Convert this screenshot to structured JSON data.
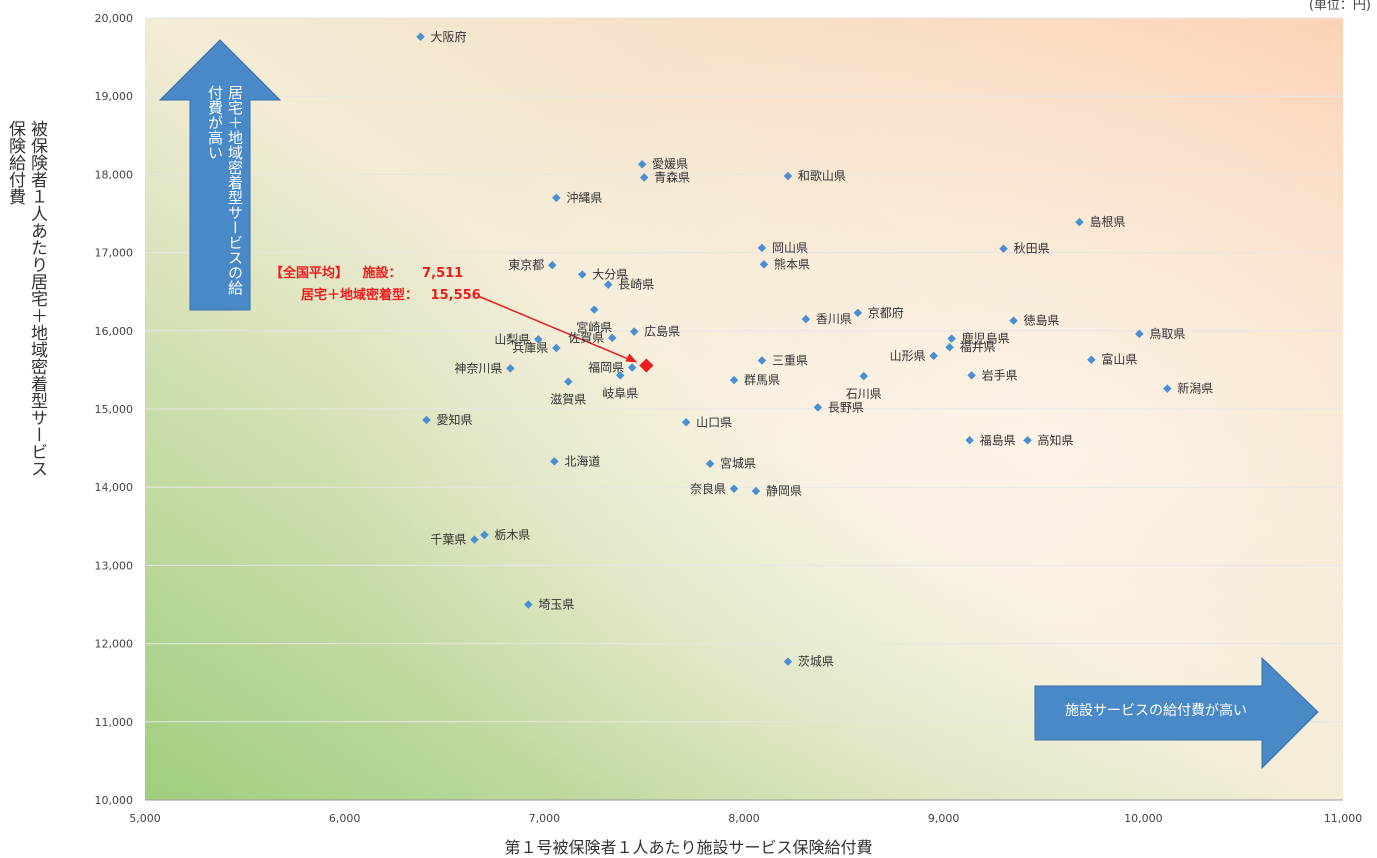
{
  "unit_label": "(単位：円)",
  "arrows": {
    "up": "居宅＋地域密着型サービスの給付費が高い",
    "right": "施設サービスの給付費が高い"
  },
  "national_average": {
    "title": "【全国平均】",
    "facility_label": "施設：",
    "facility_value": "7,511",
    "home_label": "居宅＋地域密着型：",
    "home_value": "15,556",
    "x": 7511,
    "y": 15556
  },
  "chart_data": {
    "type": "scatter",
    "xlabel": "第１号被保険者１人あたり施設サービス保険給付費",
    "ylabel": "被保険者１人あたり居宅＋地域密着型サービス保険給付費",
    "xlim": [
      5000,
      11000
    ],
    "ylim": [
      10000,
      20000
    ],
    "xticks": [
      "5,000",
      "6,000",
      "7,000",
      "8,000",
      "9,000",
      "10,000",
      "11,000"
    ],
    "yticks": [
      "10,000",
      "11,000",
      "12,000",
      "13,000",
      "14,000",
      "15,000",
      "16,000",
      "17,000",
      "18,000",
      "19,000",
      "20,000"
    ],
    "grid": "horizontal",
    "points": [
      {
        "label": "大阪府",
        "x": 6380,
        "y": 19760
      },
      {
        "label": "愛媛県",
        "x": 7490,
        "y": 18130
      },
      {
        "label": "青森県",
        "x": 7500,
        "y": 17960
      },
      {
        "label": "和歌山県",
        "x": 8220,
        "y": 17980
      },
      {
        "label": "沖縄県",
        "x": 7060,
        "y": 17700
      },
      {
        "label": "島根県",
        "x": 9680,
        "y": 17390
      },
      {
        "label": "岡山県",
        "x": 8090,
        "y": 17060
      },
      {
        "label": "秋田県",
        "x": 9300,
        "y": 17050
      },
      {
        "label": "熊本県",
        "x": 8100,
        "y": 16850
      },
      {
        "label": "東京都",
        "x": 7040,
        "y": 16840
      },
      {
        "label": "大分県",
        "x": 7190,
        "y": 16720
      },
      {
        "label": "長崎県",
        "x": 7320,
        "y": 16590
      },
      {
        "label": "宮崎県",
        "x": 7250,
        "y": 16270
      },
      {
        "label": "香川県",
        "x": 8310,
        "y": 16150
      },
      {
        "label": "京都府",
        "x": 8570,
        "y": 16230
      },
      {
        "label": "徳島県",
        "x": 9350,
        "y": 16130
      },
      {
        "label": "佐賀県",
        "x": 7340,
        "y": 15910
      },
      {
        "label": "広島県",
        "x": 7450,
        "y": 15990
      },
      {
        "label": "山梨県",
        "x": 6970,
        "y": 15890
      },
      {
        "label": "鹿児島県",
        "x": 9040,
        "y": 15900
      },
      {
        "label": "鳥取県",
        "x": 9980,
        "y": 15960
      },
      {
        "label": "福井県",
        "x": 9030,
        "y": 15790
      },
      {
        "label": "兵庫県",
        "x": 7060,
        "y": 15780
      },
      {
        "label": "三重県",
        "x": 8090,
        "y": 15620
      },
      {
        "label": "山形県",
        "x": 8950,
        "y": 15680
      },
      {
        "label": "富山県",
        "x": 9740,
        "y": 15630
      },
      {
        "label": "福岡県",
        "x": 7440,
        "y": 15530
      },
      {
        "label": "神奈川県",
        "x": 6830,
        "y": 15520
      },
      {
        "label": "岐阜県",
        "x": 7380,
        "y": 15430
      },
      {
        "label": "岩手県",
        "x": 9140,
        "y": 15430
      },
      {
        "label": "石川県",
        "x": 8600,
        "y": 15420
      },
      {
        "label": "群馬県",
        "x": 7950,
        "y": 15370
      },
      {
        "label": "滋賀県",
        "x": 7120,
        "y": 15350
      },
      {
        "label": "新潟県",
        "x": 10120,
        "y": 15260
      },
      {
        "label": "長野県",
        "x": 8370,
        "y": 15020
      },
      {
        "label": "愛知県",
        "x": 6410,
        "y": 14860
      },
      {
        "label": "山口県",
        "x": 7710,
        "y": 14830
      },
      {
        "label": "福島県",
        "x": 9130,
        "y": 14600
      },
      {
        "label": "高知県",
        "x": 9420,
        "y": 14600
      },
      {
        "label": "北海道",
        "x": 7050,
        "y": 14330
      },
      {
        "label": "宮城県",
        "x": 7830,
        "y": 14300
      },
      {
        "label": "奈良県",
        "x": 7950,
        "y": 13980
      },
      {
        "label": "静岡県",
        "x": 8060,
        "y": 13950
      },
      {
        "label": "栃木県",
        "x": 6700,
        "y": 13390
      },
      {
        "label": "千葉県",
        "x": 6650,
        "y": 13330
      },
      {
        "label": "埼玉県",
        "x": 6920,
        "y": 12500
      },
      {
        "label": "茨城県",
        "x": 8220,
        "y": 11770
      }
    ]
  }
}
